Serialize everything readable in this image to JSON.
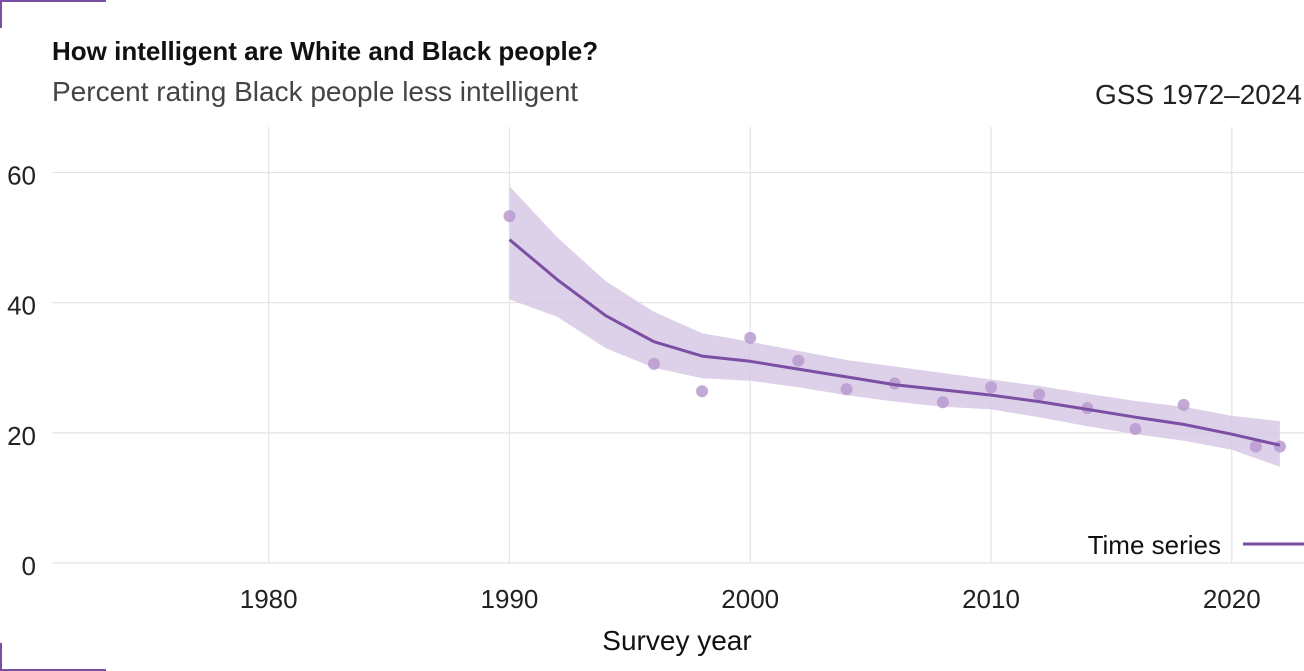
{
  "header": {
    "title": "How intelligent are White and Black people?",
    "subtitle": "Percent rating Black people less intelligent",
    "caption": "GSS 1972–2024"
  },
  "colors": {
    "accent": "#7b4fa3",
    "band": "#d7c8e5",
    "points": "#b79acf",
    "grid": "#e3e3e3"
  },
  "chart_data": {
    "type": "line",
    "title": "How intelligent are White and Black people?",
    "subtitle": "Percent rating Black people less intelligent",
    "xlabel": "Survey year",
    "ylabel": "",
    "xlim": [
      1971,
      2023
    ],
    "ylim": [
      0,
      67
    ],
    "x_ticks": [
      1980,
      1990,
      2000,
      2010,
      2020
    ],
    "y_ticks": [
      0,
      20,
      40,
      60
    ],
    "grid": true,
    "legend": {
      "position": "bottom-right",
      "entries": [
        "Time series"
      ]
    },
    "points": {
      "x": [
        1990,
        1996,
        1998,
        2000,
        2002,
        2004,
        2006,
        2008,
        2010,
        2012,
        2014,
        2016,
        2018,
        2021,
        2022
      ],
      "y": [
        53.3,
        30.6,
        26.4,
        34.6,
        31.1,
        26.7,
        27.6,
        24.7,
        27.0,
        25.9,
        23.8,
        20.6,
        24.3,
        17.9,
        17.9
      ]
    },
    "series": [
      {
        "name": "Time series",
        "x": [
          1990,
          1992,
          1994,
          1996,
          1998,
          2000,
          2002,
          2004,
          2006,
          2008,
          2010,
          2012,
          2014,
          2016,
          2018,
          2020,
          2022
        ],
        "y": [
          49.7,
          43.5,
          38.0,
          34.0,
          31.8,
          31.0,
          29.8,
          28.6,
          27.4,
          26.6,
          25.8,
          24.8,
          23.6,
          22.4,
          21.3,
          19.8,
          18.1
        ],
        "lower": [
          40.5,
          37.8,
          33.0,
          30.0,
          28.4,
          28.0,
          27.0,
          25.8,
          24.8,
          24.0,
          23.6,
          22.4,
          21.0,
          19.8,
          18.8,
          17.4,
          14.8
        ],
        "upper": [
          57.9,
          50.0,
          43.3,
          38.6,
          35.3,
          34.0,
          32.6,
          31.2,
          30.2,
          29.2,
          28.2,
          27.2,
          26.0,
          24.9,
          24.0,
          22.6,
          21.8
        ]
      }
    ]
  }
}
